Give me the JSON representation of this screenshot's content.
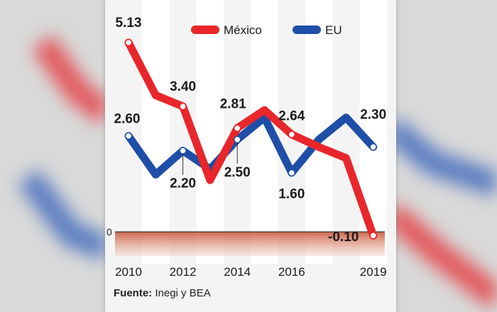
{
  "chart_data": {
    "type": "line",
    "x": [
      2010,
      2011,
      2012,
      2013,
      2014,
      2015,
      2016,
      2017,
      2018,
      2019
    ],
    "x_tick_labels": [
      "2010",
      "2012",
      "2014",
      "2016",
      "2019"
    ],
    "zero_label": "0",
    "series": [
      {
        "name": "México",
        "color": "#e8262b",
        "values": [
          5.13,
          3.7,
          3.4,
          1.4,
          2.81,
          3.3,
          2.64,
          2.3,
          2.0,
          -0.1
        ]
      },
      {
        "name": "EU",
        "color": "#1f4ea8",
        "values": [
          2.6,
          1.55,
          2.2,
          1.7,
          2.5,
          3.1,
          1.6,
          2.5,
          3.1,
          2.3
        ]
      }
    ],
    "data_labels": [
      {
        "series": 0,
        "index": 0,
        "text": "5.13"
      },
      {
        "series": 0,
        "index": 2,
        "text": "3.40"
      },
      {
        "series": 0,
        "index": 4,
        "text": "2.81"
      },
      {
        "series": 0,
        "index": 6,
        "text": "2.64"
      },
      {
        "series": 0,
        "index": 9,
        "text": "-0.10"
      },
      {
        "series": 1,
        "index": 0,
        "text": "2.60"
      },
      {
        "series": 1,
        "index": 2,
        "text": "2.20"
      },
      {
        "series": 1,
        "index": 4,
        "text": "2.50"
      },
      {
        "series": 1,
        "index": 6,
        "text": "1.60"
      },
      {
        "series": 1,
        "index": 9,
        "text": "2.30"
      }
    ],
    "ylim": [
      -0.35,
      5.6
    ],
    "legend_position": "top-right"
  },
  "source": {
    "prefix": "Fuente:",
    "text": "Inegi y BEA"
  }
}
